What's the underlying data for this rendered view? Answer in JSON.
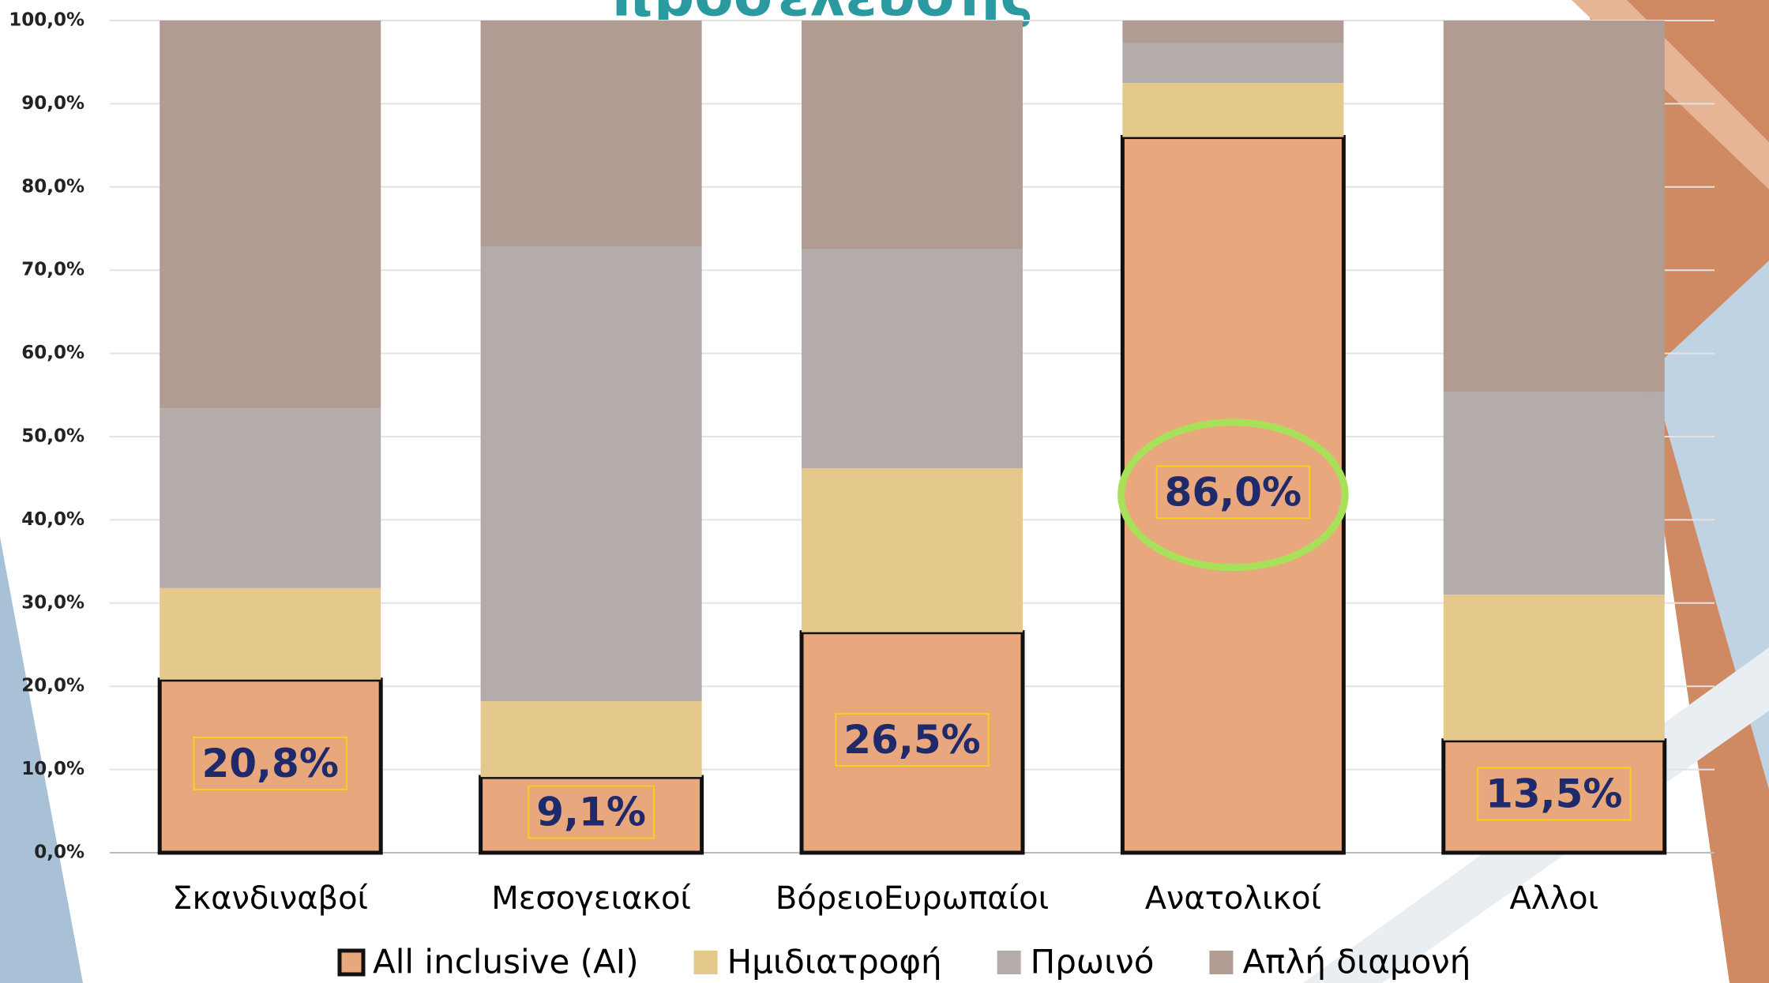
{
  "chart_data": {
    "type": "stacked-bar",
    "title": "προσέλευσης",
    "categories": [
      "Σκανδιναβοί",
      "Μεσογειακοί",
      "ΒόρειοΕυρωπαίοι",
      "Ανατολικοί",
      "Αλλοι"
    ],
    "series": [
      {
        "name": "All inclusive (AI)",
        "color": "#e8a77c",
        "values": [
          20.8,
          9.1,
          26.5,
          86.0,
          13.5
        ],
        "value_labels": [
          "20,8%",
          "9,1%",
          "26,5%",
          "86,0%",
          "13,5%"
        ]
      },
      {
        "name": "Ημιδιατροφή",
        "color": "#e5c98c",
        "values": [
          11.0,
          9.1,
          19.7,
          6.5,
          17.5
        ]
      },
      {
        "name": "Πρωινό",
        "color": "#b4abab",
        "values": [
          21.6,
          54.6,
          26.3,
          4.8,
          24.4
        ]
      },
      {
        "name": "Απλή διαμονή",
        "color": "#b09c93",
        "values": [
          46.6,
          27.2,
          27.5,
          2.7,
          44.6
        ]
      }
    ],
    "ylim": [
      0,
      100
    ],
    "yticks": [
      {
        "value": 0,
        "label": "0,0%"
      },
      {
        "value": 10,
        "label": "10,0%"
      },
      {
        "value": 20,
        "label": "20,0%"
      },
      {
        "value": 30,
        "label": "30,0%"
      },
      {
        "value": 40,
        "label": "40,0%"
      },
      {
        "value": 50,
        "label": "50,0%"
      },
      {
        "value": 60,
        "label": "60,0%"
      },
      {
        "value": 70,
        "label": "70,0%"
      },
      {
        "value": 80,
        "label": "80,0%"
      },
      {
        "value": 90,
        "label": "90,0%"
      },
      {
        "value": 100,
        "label": "100,0%"
      }
    ],
    "grid": true
  }
}
